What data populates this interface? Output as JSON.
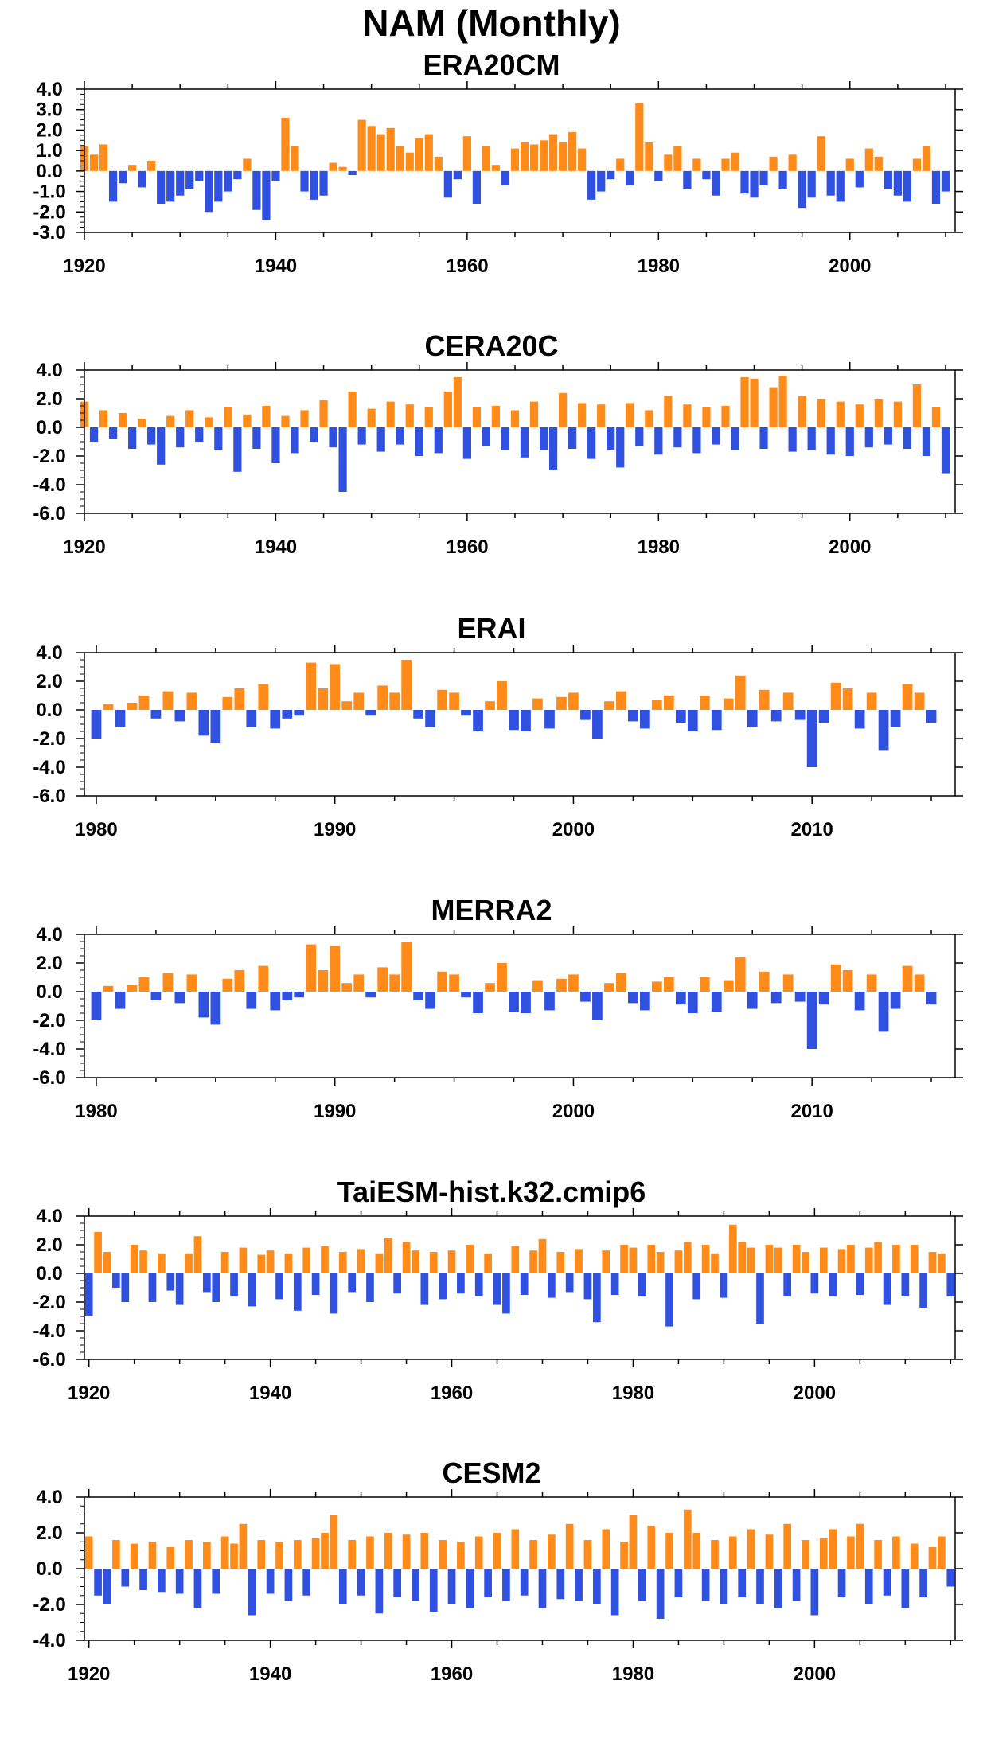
{
  "title": "NAM (Monthly)",
  "colors": {
    "positive": "#ff8c1a",
    "negative": "#3050e0",
    "axis": "#000000"
  },
  "chart_data": [
    {
      "type": "bar",
      "title": "ERA20CM",
      "ylim": [
        -3.0,
        4.0
      ],
      "yticks": [
        4.0,
        3.0,
        2.0,
        1.0,
        0.0,
        -1.0,
        -2.0,
        -3.0
      ],
      "ytick_labels": [
        "4.0",
        "3.0",
        "2.0",
        "1.0",
        "0.0",
        "-1.0",
        "-2.0",
        "-3.0"
      ],
      "xlim": [
        1920,
        2011
      ],
      "xticks": [
        1920,
        1940,
        1960,
        1980,
        2000
      ],
      "xtick_labels": [
        "1920",
        "1940",
        "1960",
        "1980",
        "2000"
      ],
      "x": [
        1920,
        1921,
        1922,
        1923,
        1924,
        1925,
        1926,
        1927,
        1928,
        1929,
        1930,
        1931,
        1932,
        1933,
        1934,
        1935,
        1936,
        1937,
        1938,
        1939,
        1940,
        1941,
        1942,
        1943,
        1944,
        1945,
        1946,
        1947,
        1948,
        1949,
        1950,
        1951,
        1952,
        1953,
        1954,
        1955,
        1956,
        1957,
        1958,
        1959,
        1960,
        1961,
        1962,
        1963,
        1964,
        1965,
        1966,
        1967,
        1968,
        1969,
        1970,
        1971,
        1972,
        1973,
        1974,
        1975,
        1976,
        1977,
        1978,
        1979,
        1980,
        1981,
        1982,
        1983,
        1984,
        1985,
        1986,
        1987,
        1988,
        1989,
        1990,
        1991,
        1992,
        1993,
        1994,
        1995,
        1996,
        1997,
        1998,
        1999,
        2000,
        2001,
        2002,
        2003,
        2004,
        2005,
        2006,
        2007,
        2008,
        2009,
        2010
      ],
      "values": [
        1.2,
        0.8,
        1.3,
        -1.5,
        -0.6,
        0.3,
        -0.8,
        0.5,
        -1.6,
        -1.5,
        -1.2,
        -0.9,
        -0.5,
        -2.0,
        -1.5,
        -1.0,
        -0.4,
        0.6,
        -1.9,
        -2.4,
        -0.5,
        2.6,
        1.2,
        -1.0,
        -1.4,
        -1.2,
        0.4,
        0.2,
        -0.2,
        2.5,
        2.2,
        1.8,
        2.1,
        1.2,
        0.9,
        1.6,
        1.8,
        0.7,
        -1.3,
        -0.4,
        1.7,
        -1.6,
        1.2,
        0.3,
        -0.7,
        1.1,
        1.4,
        1.3,
        1.5,
        1.8,
        1.4,
        1.9,
        1.1,
        -1.4,
        -1.0,
        -0.4,
        0.6,
        -0.7,
        3.3,
        1.4,
        -0.5,
        0.8,
        1.2,
        -0.9,
        0.6,
        -0.4,
        -1.2,
        0.6,
        0.9,
        -1.1,
        -1.3,
        -0.7,
        0.7,
        -0.9,
        0.8,
        -1.8,
        -1.3,
        1.7,
        -1.2,
        -1.5,
        0.6,
        -0.8,
        1.1,
        0.7,
        -0.9,
        -1.2,
        -1.5,
        0.6,
        1.2,
        -1.6,
        -1.0
      ]
    },
    {
      "type": "bar",
      "title": "CERA20C",
      "ylim": [
        -6.0,
        4.0
      ],
      "yticks": [
        4.0,
        2.0,
        0.0,
        -2.0,
        -4.0,
        -6.0
      ],
      "ytick_labels": [
        "4.0",
        "2.0",
        "0.0",
        "-2.0",
        "-4.0",
        "-6.0"
      ],
      "xlim": [
        1920,
        2011
      ],
      "xticks": [
        1920,
        1940,
        1960,
        1980,
        2000
      ],
      "xtick_labels": [
        "1920",
        "1940",
        "1960",
        "1980",
        "2000"
      ],
      "x": [
        1920,
        1921,
        1922,
        1923,
        1924,
        1925,
        1926,
        1927,
        1928,
        1929,
        1930,
        1931,
        1932,
        1933,
        1934,
        1935,
        1936,
        1937,
        1938,
        1939,
        1940,
        1941,
        1942,
        1943,
        1944,
        1945,
        1946,
        1947,
        1948,
        1949,
        1950,
        1951,
        1952,
        1953,
        1954,
        1955,
        1956,
        1957,
        1958,
        1959,
        1960,
        1961,
        1962,
        1963,
        1964,
        1965,
        1966,
        1967,
        1968,
        1969,
        1970,
        1971,
        1972,
        1973,
        1974,
        1975,
        1976,
        1977,
        1978,
        1979,
        1980,
        1981,
        1982,
        1983,
        1984,
        1985,
        1986,
        1987,
        1988,
        1989,
        1990,
        1991,
        1992,
        1993,
        1994,
        1995,
        1996,
        1997,
        1998,
        1999,
        2000,
        2001,
        2002,
        2003,
        2004,
        2005,
        2006,
        2007,
        2008,
        2009,
        2010
      ],
      "values": [
        1.8,
        -1.0,
        1.2,
        -0.8,
        1.0,
        -1.5,
        0.6,
        -1.2,
        -2.6,
        0.8,
        -1.4,
        1.2,
        -1.0,
        0.7,
        -1.6,
        1.4,
        -3.1,
        0.9,
        -1.5,
        1.5,
        -2.5,
        0.8,
        -1.8,
        1.2,
        -1.0,
        1.9,
        -1.4,
        -4.5,
        2.5,
        -1.2,
        1.3,
        -1.7,
        1.8,
        -1.2,
        1.6,
        -2.0,
        1.4,
        -1.8,
        2.5,
        3.5,
        -2.2,
        1.4,
        -1.3,
        1.5,
        -1.6,
        1.2,
        -2.1,
        1.8,
        -1.6,
        -3.0,
        2.4,
        -1.5,
        1.7,
        -2.2,
        1.6,
        -1.6,
        -2.8,
        1.7,
        -1.3,
        1.2,
        -1.9,
        2.2,
        -1.4,
        1.6,
        -1.8,
        1.4,
        -1.2,
        1.5,
        -1.6,
        3.5,
        3.4,
        -1.5,
        2.8,
        3.6,
        -1.7,
        2.2,
        -1.6,
        2.0,
        -1.9,
        1.8,
        -2.0,
        1.6,
        -1.4,
        2.0,
        -1.2,
        1.8,
        -1.5,
        3.0,
        -2.0,
        1.4,
        -3.2
      ]
    },
    {
      "type": "bar",
      "title": "ERAI",
      "ylim": [
        -6.0,
        4.0
      ],
      "yticks": [
        4.0,
        2.0,
        0.0,
        -2.0,
        -4.0,
        -6.0
      ],
      "ytick_labels": [
        "4.0",
        "2.0",
        "0.0",
        "-2.0",
        "-4.0",
        "-6.0"
      ],
      "xlim": [
        1979.5,
        2016
      ],
      "xticks": [
        1980,
        1990,
        2000,
        2010
      ],
      "xtick_labels": [
        "1980",
        "1990",
        "2000",
        "2010"
      ],
      "x": [
        1980,
        1980.5,
        1981,
        1981.5,
        1982,
        1982.5,
        1983,
        1983.5,
        1984,
        1984.5,
        1985,
        1985.5,
        1986,
        1986.5,
        1987,
        1987.5,
        1988,
        1988.5,
        1989,
        1989.5,
        1990,
        1990.5,
        1991,
        1991.5,
        1992,
        1992.5,
        1993,
        1993.5,
        1994,
        1994.5,
        1995,
        1995.5,
        1996,
        1996.5,
        1997,
        1997.5,
        1998,
        1998.5,
        1999,
        1999.5,
        2000,
        2000.5,
        2001,
        2001.5,
        2002,
        2002.5,
        2003,
        2003.5,
        2004,
        2004.5,
        2005,
        2005.5,
        2006,
        2006.5,
        2007,
        2007.5,
        2008,
        2008.5,
        2009,
        2009.5,
        2010,
        2010.5,
        2011,
        2011.5,
        2012,
        2012.5,
        2013,
        2013.5,
        2014,
        2014.5,
        2015
      ],
      "values": [
        -2.0,
        0.4,
        -1.2,
        0.5,
        1.0,
        -0.6,
        1.3,
        -0.8,
        1.2,
        -1.8,
        -2.3,
        0.9,
        1.5,
        -1.2,
        1.8,
        -1.3,
        -0.6,
        -0.4,
        3.3,
        1.5,
        3.2,
        0.6,
        1.2,
        -0.4,
        1.7,
        1.2,
        3.5,
        -0.6,
        -1.2,
        1.4,
        1.2,
        -0.4,
        -1.5,
        0.6,
        2.0,
        -1.4,
        -1.5,
        0.8,
        -1.3,
        0.9,
        1.2,
        -0.7,
        -2.0,
        0.6,
        1.3,
        -0.8,
        -1.3,
        0.7,
        1.0,
        -0.9,
        -1.5,
        1.0,
        -1.4,
        0.8,
        2.4,
        -1.2,
        1.4,
        -0.8,
        1.2,
        -0.7,
        -4.0,
        -0.9,
        1.9,
        1.5,
        -1.3,
        1.2,
        -2.8,
        -1.2,
        1.8,
        1.2,
        -0.9
      ]
    },
    {
      "type": "bar",
      "title": "MERRA2",
      "ylim": [
        -6.0,
        4.0
      ],
      "yticks": [
        4.0,
        2.0,
        0.0,
        -2.0,
        -4.0,
        -6.0
      ],
      "ytick_labels": [
        "4.0",
        "2.0",
        "0.0",
        "-2.0",
        "-4.0",
        "-6.0"
      ],
      "xlim": [
        1979.5,
        2016
      ],
      "xticks": [
        1980,
        1990,
        2000,
        2010
      ],
      "xtick_labels": [
        "1980",
        "1990",
        "2000",
        "2010"
      ],
      "x": [
        1980,
        1980.5,
        1981,
        1981.5,
        1982,
        1982.5,
        1983,
        1983.5,
        1984,
        1984.5,
        1985,
        1985.5,
        1986,
        1986.5,
        1987,
        1987.5,
        1988,
        1988.5,
        1989,
        1989.5,
        1990,
        1990.5,
        1991,
        1991.5,
        1992,
        1992.5,
        1993,
        1993.5,
        1994,
        1994.5,
        1995,
        1995.5,
        1996,
        1996.5,
        1997,
        1997.5,
        1998,
        1998.5,
        1999,
        1999.5,
        2000,
        2000.5,
        2001,
        2001.5,
        2002,
        2002.5,
        2003,
        2003.5,
        2004,
        2004.5,
        2005,
        2005.5,
        2006,
        2006.5,
        2007,
        2007.5,
        2008,
        2008.5,
        2009,
        2009.5,
        2010,
        2010.5,
        2011,
        2011.5,
        2012,
        2012.5,
        2013,
        2013.5,
        2014,
        2014.5,
        2015
      ],
      "values": [
        -2.0,
        0.4,
        -1.2,
        0.5,
        1.0,
        -0.6,
        1.3,
        -0.8,
        1.2,
        -1.8,
        -2.3,
        0.9,
        1.5,
        -1.2,
        1.8,
        -1.3,
        -0.6,
        -0.4,
        3.3,
        1.5,
        3.2,
        0.6,
        1.2,
        -0.4,
        1.7,
        1.2,
        3.5,
        -0.6,
        -1.2,
        1.4,
        1.2,
        -0.4,
        -1.5,
        0.6,
        2.0,
        -1.4,
        -1.5,
        0.8,
        -1.3,
        0.9,
        1.2,
        -0.7,
        -2.0,
        0.6,
        1.3,
        -0.8,
        -1.3,
        0.7,
        1.0,
        -0.9,
        -1.5,
        1.0,
        -1.4,
        0.8,
        2.4,
        -1.2,
        1.4,
        -0.8,
        1.2,
        -0.7,
        -4.0,
        -0.9,
        1.9,
        1.5,
        -1.3,
        1.2,
        -2.8,
        -1.2,
        1.8,
        1.2,
        -0.9
      ]
    },
    {
      "type": "bar",
      "title": "TaiESM-hist.k32.cmip6",
      "ylim": [
        -6.0,
        4.0
      ],
      "yticks": [
        4.0,
        2.0,
        0.0,
        -2.0,
        -4.0,
        -6.0
      ],
      "ytick_labels": [
        "4.0",
        "2.0",
        "0.0",
        "-2.0",
        "-4.0",
        "-6.0"
      ],
      "xlim": [
        1919.5,
        2015.5
      ],
      "xticks": [
        1920,
        1940,
        1960,
        1980,
        2000
      ],
      "xtick_labels": [
        "1920",
        "1940",
        "1960",
        "1980",
        "2000"
      ],
      "x": [
        1920,
        1921,
        1922,
        1923,
        1924,
        1925,
        1926,
        1927,
        1928,
        1929,
        1930,
        1931,
        1932,
        1933,
        1934,
        1935,
        1936,
        1937,
        1938,
        1939,
        1940,
        1941,
        1942,
        1943,
        1944,
        1945,
        1946,
        1947,
        1948,
        1949,
        1950,
        1951,
        1952,
        1953,
        1954,
        1955,
        1956,
        1957,
        1958,
        1959,
        1960,
        1961,
        1962,
        1963,
        1964,
        1965,
        1966,
        1967,
        1968,
        1969,
        1970,
        1971,
        1972,
        1973,
        1974,
        1975,
        1976,
        1977,
        1978,
        1979,
        1980,
        1981,
        1982,
        1983,
        1984,
        1985,
        1986,
        1987,
        1988,
        1989,
        1990,
        1991,
        1992,
        1993,
        1994,
        1995,
        1996,
        1997,
        1998,
        1999,
        2000,
        2001,
        2002,
        2003,
        2004,
        2005,
        2006,
        2007,
        2008,
        2009,
        2010,
        2011,
        2012,
        2013,
        2014,
        2015
      ],
      "values": [
        -3.0,
        2.9,
        1.5,
        -1.0,
        -2.0,
        2.0,
        1.6,
        -2.0,
        1.4,
        -1.2,
        -2.2,
        1.4,
        2.6,
        -1.3,
        -2.0,
        1.5,
        -1.6,
        1.8,
        -2.3,
        1.3,
        1.6,
        -1.8,
        1.4,
        -2.6,
        1.8,
        -1.5,
        1.9,
        -2.8,
        1.5,
        -1.3,
        1.7,
        -2.0,
        1.4,
        2.5,
        -1.4,
        2.2,
        1.6,
        -2.2,
        1.5,
        -1.8,
        1.6,
        -1.4,
        2.0,
        -1.6,
        1.4,
        -2.2,
        -2.8,
        1.9,
        -1.5,
        1.6,
        2.4,
        -1.7,
        1.5,
        -1.3,
        1.7,
        -1.8,
        -3.4,
        1.6,
        -1.5,
        2.0,
        1.8,
        -1.6,
        2.0,
        1.5,
        -3.7,
        1.6,
        2.2,
        -1.8,
        2.0,
        1.4,
        -1.7,
        3.4,
        2.2,
        1.8,
        -3.5,
        2.0,
        1.8,
        -1.6,
        2.0,
        1.5,
        -1.4,
        1.8,
        -1.6,
        1.7,
        2.0,
        -1.5,
        1.8,
        2.2,
        -2.2,
        2.0,
        -1.6,
        2.0,
        -2.4,
        1.5,
        1.4,
        -1.6
      ]
    },
    {
      "type": "bar",
      "title": "CESM2",
      "ylim": [
        -4.0,
        4.0
      ],
      "yticks": [
        4.0,
        2.0,
        0.0,
        -2.0,
        -4.0
      ],
      "ytick_labels": [
        "4.0",
        "2.0",
        "0.0",
        "-2.0",
        "-4.0"
      ],
      "xlim": [
        1919.5,
        2015.5
      ],
      "xticks": [
        1920,
        1940,
        1960,
        1980,
        2000
      ],
      "xtick_labels": [
        "1920",
        "1940",
        "1960",
        "1980",
        "2000"
      ],
      "x": [
        1920,
        1921,
        1922,
        1923,
        1924,
        1925,
        1926,
        1927,
        1928,
        1929,
        1930,
        1931,
        1932,
        1933,
        1934,
        1935,
        1936,
        1937,
        1938,
        1939,
        1940,
        1941,
        1942,
        1943,
        1944,
        1945,
        1946,
        1947,
        1948,
        1949,
        1950,
        1951,
        1952,
        1953,
        1954,
        1955,
        1956,
        1957,
        1958,
        1959,
        1960,
        1961,
        1962,
        1963,
        1964,
        1965,
        1966,
        1967,
        1968,
        1969,
        1970,
        1971,
        1972,
        1973,
        1974,
        1975,
        1976,
        1977,
        1978,
        1979,
        1980,
        1981,
        1982,
        1983,
        1984,
        1985,
        1986,
        1987,
        1988,
        1989,
        1990,
        1991,
        1992,
        1993,
        1994,
        1995,
        1996,
        1997,
        1998,
        1999,
        2000,
        2001,
        2002,
        2003,
        2004,
        2005,
        2006,
        2007,
        2008,
        2009,
        2010,
        2011,
        2012,
        2013,
        2014,
        2015
      ],
      "values": [
        1.8,
        -1.5,
        -2.0,
        1.6,
        -1.0,
        1.4,
        -1.2,
        1.5,
        -1.3,
        1.2,
        -1.4,
        1.6,
        -2.2,
        1.5,
        -1.4,
        1.8,
        1.4,
        2.5,
        -2.6,
        1.6,
        -1.4,
        1.5,
        -1.8,
        1.6,
        -1.5,
        1.7,
        2.0,
        3.0,
        -2.0,
        1.6,
        -1.5,
        1.8,
        -2.5,
        2.0,
        -1.6,
        1.9,
        -1.8,
        2.0,
        -2.4,
        1.6,
        -2.0,
        1.5,
        -2.2,
        1.8,
        -1.6,
        2.0,
        -1.8,
        2.2,
        -1.5,
        1.6,
        -2.2,
        1.9,
        -1.7,
        2.5,
        -1.8,
        1.6,
        -2.0,
        2.2,
        -2.6,
        1.5,
        3.0,
        -1.8,
        2.4,
        -2.8,
        2.0,
        -1.6,
        3.3,
        2.0,
        -1.8,
        1.6,
        -2.0,
        1.8,
        -1.6,
        2.2,
        -2.0,
        1.9,
        -2.2,
        2.5,
        -1.8,
        1.6,
        -2.6,
        1.7,
        2.2,
        -1.6,
        1.8,
        2.5,
        -2.0,
        1.6,
        -1.5,
        1.8,
        -2.2,
        1.4,
        -1.6,
        1.2,
        1.8,
        -1.0
      ]
    }
  ]
}
